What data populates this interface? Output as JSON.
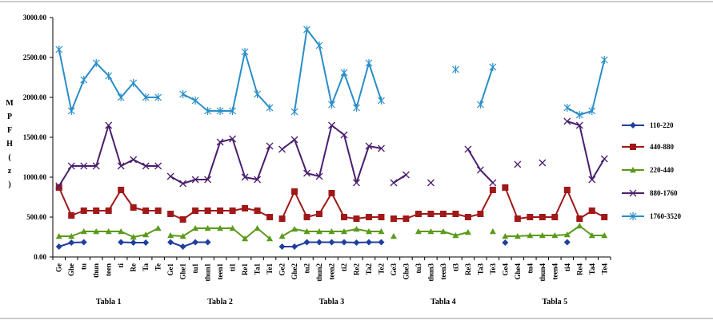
{
  "chart_data": {
    "type": "line",
    "title": "",
    "ylabel": "MPFH(z)",
    "xlabel": "",
    "ylim": [
      0,
      3000
    ],
    "yticks": [
      "0.00",
      "500.00",
      "1000.00",
      "1500.00",
      "2000.00",
      "2500.00",
      "3000.00"
    ],
    "ytick_values": [
      0,
      500,
      1000,
      1500,
      2000,
      2500,
      3000
    ],
    "grid": false,
    "legend_position": "right",
    "categories": [
      "Ge",
      "Ghe",
      "tu",
      "thun",
      "teen",
      "ti",
      "Re",
      "Ta",
      "Te",
      "Ge1",
      "Ghe1",
      "tu1",
      "thun1",
      "teen1",
      "ti1",
      "Re1",
      "Ta1",
      "Te1",
      "Ge2",
      "Ghe2",
      "tu2",
      "thun2",
      "teen2",
      "ti2",
      "Re2",
      "Ta2",
      "Te2",
      "Ge3",
      "Ghe3",
      "tu3",
      "thun3",
      "teen3",
      "ti3",
      "Re3",
      "Ta3",
      "Te3",
      "Ge4",
      "Ghe4",
      "tu4",
      "thun4",
      "teen4",
      "ti4",
      "Re4",
      "Ta4",
      "Te4"
    ],
    "groups": [
      {
        "label": "Tabla 1",
        "start": 0,
        "end": 8
      },
      {
        "label": "Tabla 2",
        "start": 9,
        "end": 17
      },
      {
        "label": "Tabla 3",
        "start": 18,
        "end": 26
      },
      {
        "label": "Tabla 4",
        "start": 27,
        "end": 35
      },
      {
        "label": "Tabla 5",
        "start": 36,
        "end": 44
      }
    ],
    "series": [
      {
        "name": "110-220",
        "color": "#1f3f9e",
        "marker": "diamond",
        "values": [
          130,
          180,
          185,
          null,
          null,
          185,
          180,
          180,
          null,
          185,
          130,
          185,
          185,
          null,
          null,
          null,
          null,
          null,
          130,
          130,
          185,
          185,
          185,
          185,
          180,
          185,
          185,
          null,
          null,
          null,
          null,
          null,
          null,
          null,
          null,
          null,
          180,
          null,
          null,
          null,
          null,
          185,
          null,
          null,
          null
        ]
      },
      {
        "name": "440-880",
        "color": "#a01818",
        "marker": "square",
        "values": [
          870,
          520,
          580,
          580,
          580,
          840,
          620,
          580,
          580,
          540,
          470,
          580,
          580,
          580,
          580,
          610,
          580,
          500,
          480,
          820,
          500,
          540,
          800,
          500,
          480,
          500,
          500,
          480,
          480,
          540,
          540,
          540,
          540,
          500,
          540,
          840,
          870,
          480,
          500,
          500,
          500,
          840,
          480,
          580,
          500
        ]
      },
      {
        "name": "220-440",
        "color": "#5a9a1a",
        "marker": "triangle",
        "values": [
          260,
          260,
          320,
          320,
          320,
          320,
          250,
          280,
          360,
          270,
          260,
          360,
          360,
          360,
          360,
          230,
          360,
          230,
          260,
          350,
          320,
          320,
          320,
          320,
          350,
          320,
          320,
          260,
          null,
          320,
          320,
          320,
          270,
          310,
          null,
          320,
          260,
          260,
          270,
          270,
          270,
          280,
          390,
          270,
          270
        ]
      },
      {
        "name": "880-1760",
        "color": "#4a1e6e",
        "marker": "x",
        "values": [
          890,
          1140,
          1140,
          1140,
          1650,
          1140,
          1220,
          1140,
          1140,
          1010,
          920,
          970,
          970,
          1440,
          1480,
          1000,
          970,
          1390,
          1350,
          1470,
          1050,
          1010,
          1650,
          1530,
          930,
          1390,
          1360,
          930,
          1030,
          null,
          930,
          null,
          null,
          1350,
          1090,
          930,
          null,
          1160,
          null,
          1180,
          null,
          1700,
          1650,
          970,
          1230
        ]
      },
      {
        "name": "1760-3520",
        "color": "#2a8ec8",
        "marker": "star",
        "values": [
          2600,
          1830,
          2220,
          2430,
          2270,
          2000,
          2180,
          2000,
          2000,
          null,
          2040,
          1960,
          1830,
          1830,
          1830,
          2570,
          2040,
          1870,
          null,
          1820,
          2850,
          2650,
          1910,
          2310,
          1870,
          2430,
          1960,
          null,
          null,
          null,
          null,
          null,
          2350,
          null,
          1910,
          2380,
          null,
          null,
          null,
          null,
          null,
          1870,
          1780,
          1830,
          2470
        ]
      }
    ]
  }
}
